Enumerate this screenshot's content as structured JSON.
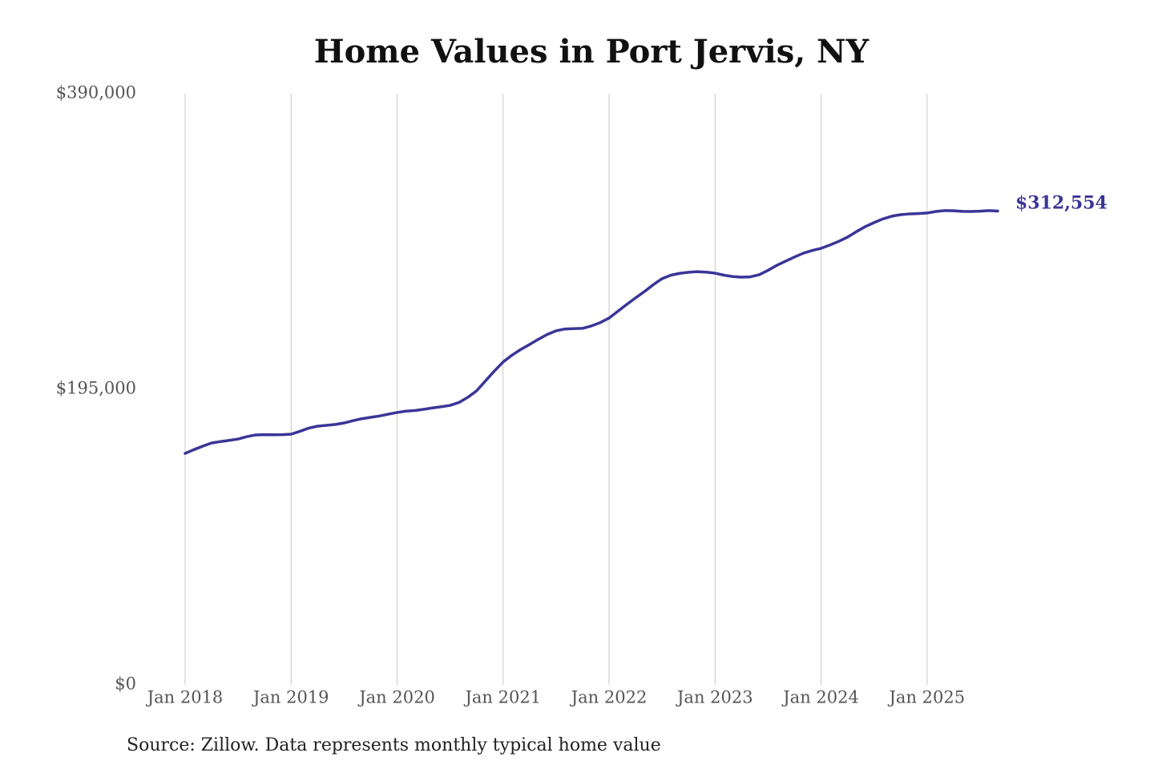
{
  "chart_data": {
    "type": "line",
    "title": "Home Values in Port Jervis, NY",
    "source": "Source: Zillow. Data represents monthly typical home value",
    "x": [
      "2018-01",
      "2018-02",
      "2018-03",
      "2018-04",
      "2018-05",
      "2018-06",
      "2018-07",
      "2018-08",
      "2018-09",
      "2018-10",
      "2018-11",
      "2018-12",
      "2019-01",
      "2019-02",
      "2019-03",
      "2019-04",
      "2019-05",
      "2019-06",
      "2019-07",
      "2019-08",
      "2019-09",
      "2019-10",
      "2019-11",
      "2019-12",
      "2020-01",
      "2020-02",
      "2020-03",
      "2020-04",
      "2020-05",
      "2020-06",
      "2020-07",
      "2020-08",
      "2020-09",
      "2020-10",
      "2020-11",
      "2020-12",
      "2021-01",
      "2021-02",
      "2021-03",
      "2021-04",
      "2021-05",
      "2021-06",
      "2021-07",
      "2021-08",
      "2021-09",
      "2021-10",
      "2021-11",
      "2021-12",
      "2022-01",
      "2022-02",
      "2022-03",
      "2022-04",
      "2022-05",
      "2022-06",
      "2022-07",
      "2022-08",
      "2022-09",
      "2022-10",
      "2022-11",
      "2022-12",
      "2023-01",
      "2023-02",
      "2023-03",
      "2023-04",
      "2023-05",
      "2023-06",
      "2023-07",
      "2023-08",
      "2023-09",
      "2023-10",
      "2023-11",
      "2023-12",
      "2024-01",
      "2024-02",
      "2024-03",
      "2024-04",
      "2024-05",
      "2024-06",
      "2024-07",
      "2024-08",
      "2024-09",
      "2024-10",
      "2024-11",
      "2024-12",
      "2025-01",
      "2025-02",
      "2025-03",
      "2025-04",
      "2025-05",
      "2025-06",
      "2025-07",
      "2025-08",
      "2025-09"
    ],
    "series": [
      {
        "color": "#3a3597",
        "values": [
          152700,
          155200,
          157500,
          159600,
          160500,
          161300,
          162200,
          163800,
          164900,
          165100,
          165000,
          165100,
          165400,
          167300,
          169400,
          170700,
          171200,
          171800,
          172800,
          174300,
          175600,
          176500,
          177400,
          178600,
          179700,
          180600,
          181000,
          181800,
          182700,
          183500,
          184400,
          186300,
          189700,
          194000,
          200500,
          207000,
          213000,
          217500,
          221300,
          224600,
          228000,
          231200,
          233600,
          234800,
          235000,
          235200,
          236800,
          239000,
          242000,
          246500,
          251000,
          255300,
          259500,
          264000,
          268000,
          270300,
          271500,
          272200,
          272600,
          272300,
          271600,
          270300,
          269400,
          269000,
          269200,
          270600,
          273500,
          276800,
          279600,
          282300,
          284800,
          286600,
          288000,
          290200,
          292600,
          295400,
          299000,
          302300,
          305000,
          307400,
          309200,
          310200,
          310700,
          310900,
          311300,
          312300,
          312900,
          312800,
          312400,
          312300,
          312500,
          312900,
          312554
        ],
        "end_label": "$312,554"
      }
    ],
    "xlim": [
      "2018-01",
      "2025-09"
    ],
    "xticks": [
      {
        "value": "2018-01",
        "label": "Jan 2018"
      },
      {
        "value": "2019-01",
        "label": "Jan 2019"
      },
      {
        "value": "2020-01",
        "label": "Jan 2020"
      },
      {
        "value": "2021-01",
        "label": "Jan 2021"
      },
      {
        "value": "2022-01",
        "label": "Jan 2022"
      },
      {
        "value": "2023-01",
        "label": "Jan 2023"
      },
      {
        "value": "2024-01",
        "label": "Jan 2024"
      },
      {
        "value": "2025-01",
        "label": "Jan 2025"
      }
    ],
    "ylim": [
      0,
      390000
    ],
    "yticks": [
      {
        "value": 0,
        "label": "$0"
      },
      {
        "value": 195000,
        "label": "$195,000"
      },
      {
        "value": 390000,
        "label": "$390,000"
      }
    ],
    "grid": true
  }
}
